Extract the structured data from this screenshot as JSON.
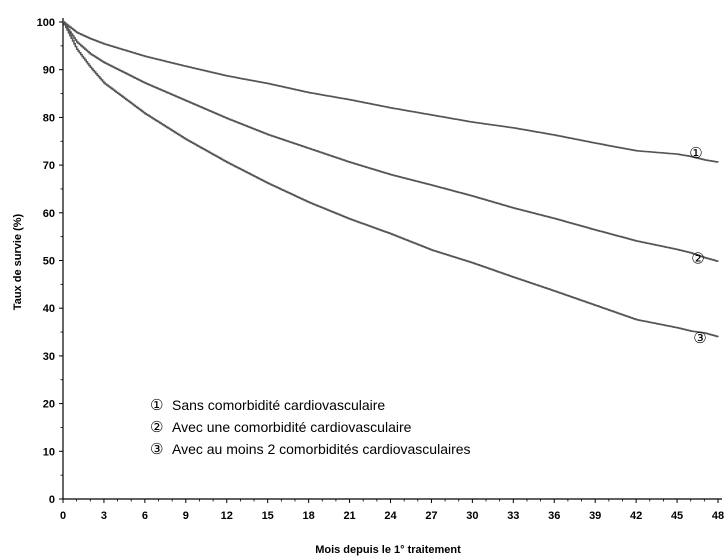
{
  "chart_data": {
    "type": "line",
    "xlabel": "Mois depuis le 1° traitement",
    "ylabel": "Taux de survie (%)",
    "xlim": [
      0,
      48
    ],
    "ylim": [
      0,
      100
    ],
    "x_ticks": [
      "0",
      "3",
      "6",
      "9",
      "12",
      "15",
      "18",
      "21",
      "24",
      "27",
      "30",
      "33",
      "36",
      "39",
      "42",
      "45",
      "48"
    ],
    "y_ticks": [
      "0",
      "10",
      "20",
      "30",
      "40",
      "50",
      "60",
      "70",
      "80",
      "90",
      "100"
    ],
    "grid": false,
    "line_color": "#555555",
    "series": [
      {
        "name": "Sans comorbidité cardiovasculaire",
        "marker": "①",
        "x": [
          0,
          1,
          2,
          3,
          6,
          9,
          12,
          15,
          18,
          21,
          24,
          27,
          30,
          33,
          36,
          39,
          42,
          45,
          46,
          47,
          48
        ],
        "y": [
          100,
          97.8,
          96.5,
          95.4,
          92.8,
          90.7,
          88.7,
          87.1,
          85.2,
          83.7,
          82.0,
          80.5,
          79.0,
          77.8,
          76.3,
          74.6,
          73.0,
          72.3,
          71.8,
          71.1,
          70.6
        ]
      },
      {
        "name": "Avec une comorbidité cardiovasculaire",
        "marker": "②",
        "x": [
          0,
          1,
          2,
          3,
          6,
          9,
          12,
          15,
          18,
          21,
          24,
          27,
          30,
          33,
          36,
          39,
          42,
          45,
          46,
          47,
          48
        ],
        "y": [
          100,
          95.8,
          93.3,
          91.5,
          87.2,
          83.5,
          79.8,
          76.4,
          73.5,
          70.6,
          68.0,
          65.8,
          63.5,
          61.0,
          58.8,
          56.4,
          54.1,
          52.3,
          51.6,
          50.6,
          49.8
        ]
      },
      {
        "name": "Avec au moins 2 comorbidités cardiovasculaires",
        "marker": "③",
        "x": [
          0,
          1,
          2,
          3,
          6,
          9,
          12,
          15,
          18,
          21,
          24,
          27,
          30,
          33,
          36,
          39,
          42,
          45,
          46,
          47,
          48
        ],
        "y": [
          100,
          94.3,
          90.5,
          87.2,
          80.8,
          75.4,
          70.6,
          66.2,
          62.2,
          58.7,
          55.6,
          52.2,
          49.5,
          46.5,
          43.6,
          40.6,
          37.6,
          35.9,
          35.2,
          34.8,
          34.0
        ]
      }
    ],
    "legend_position": "bottom-left"
  }
}
